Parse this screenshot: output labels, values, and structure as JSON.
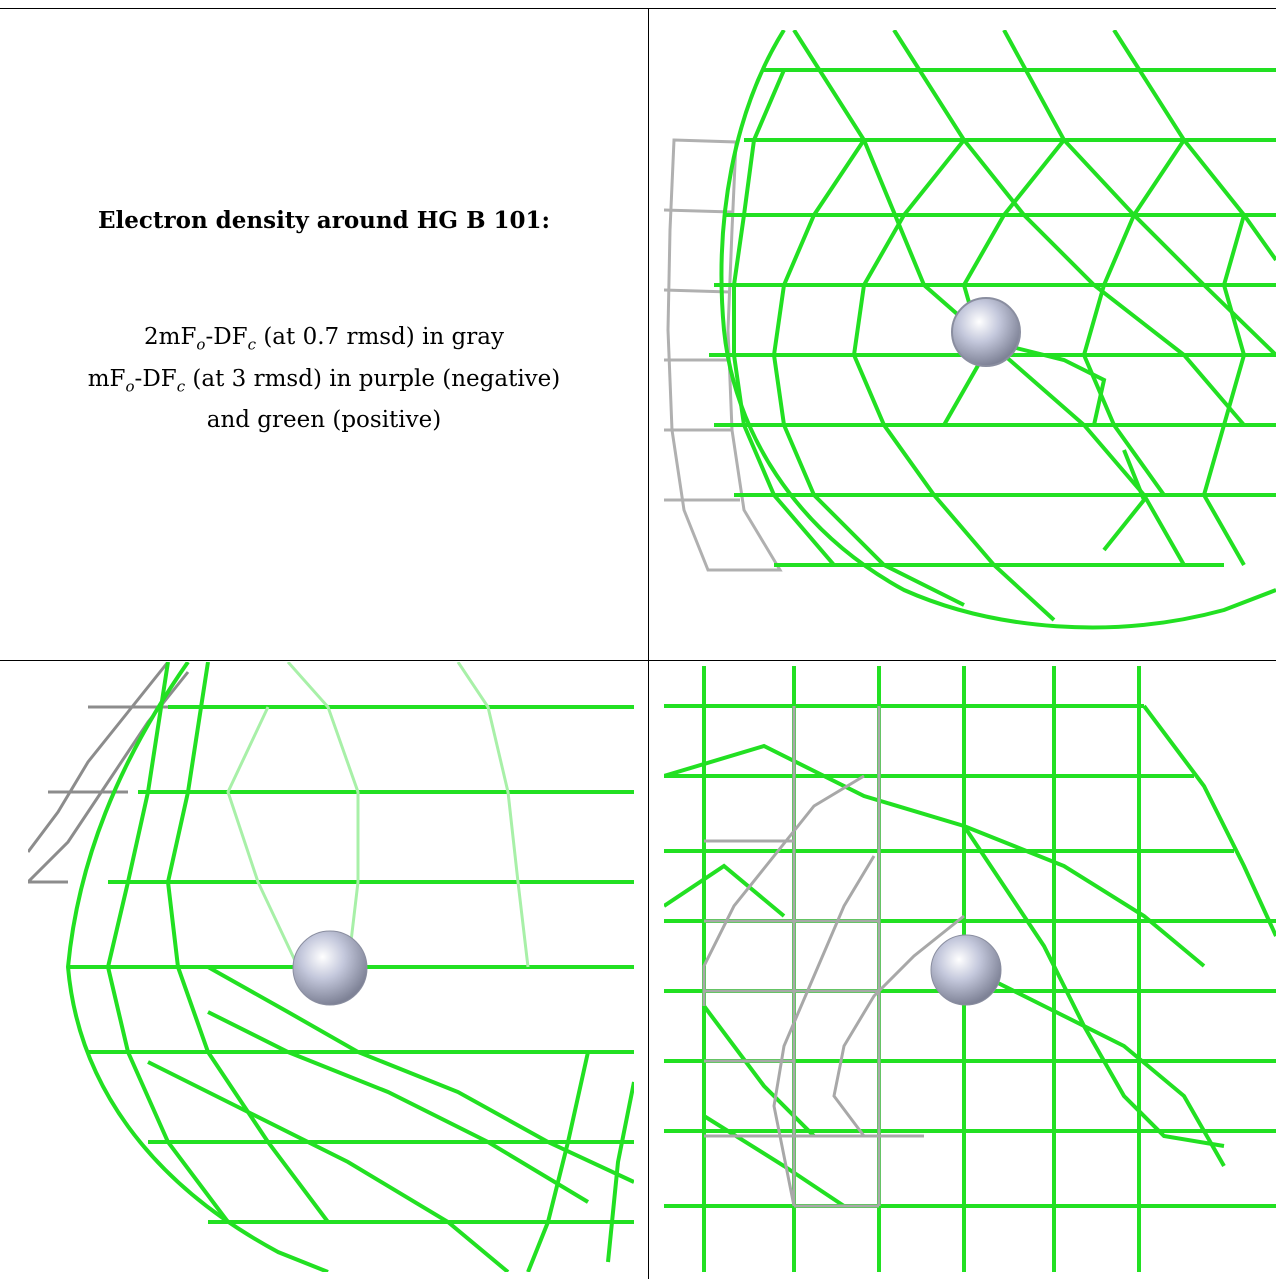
{
  "caption": {
    "title": "Electron density around HG B 101:",
    "line1_pre": "2mF",
    "line1_sub1": "o",
    "line1_mid": "-DF",
    "line1_sub2": "c",
    "line1_post": " (at 0.7 rmsd) in gray",
    "line2_pre": "mF",
    "line2_sub1": "o",
    "line2_mid": "-DF",
    "line2_sub2": "c",
    "line2_post": " (at 3 rmsd) in purple (negative)",
    "line3": "and green (positive)"
  },
  "colors": {
    "positive_mesh": "#22e022",
    "negative_mesh": "#9b59b6",
    "gray_mesh": "#a8a8a8",
    "atom": "#b8bcd0",
    "border": "#000000"
  },
  "panels": [
    {
      "id": "view-top-right",
      "icons": [
        "green-mesh",
        "gray-mesh",
        "mercury-atom-sphere"
      ]
    },
    {
      "id": "view-bottom-left",
      "icons": [
        "green-mesh",
        "gray-mesh",
        "mercury-atom-sphere"
      ]
    },
    {
      "id": "view-bottom-right",
      "icons": [
        "green-mesh",
        "gray-mesh",
        "mercury-atom-sphere"
      ]
    }
  ]
}
